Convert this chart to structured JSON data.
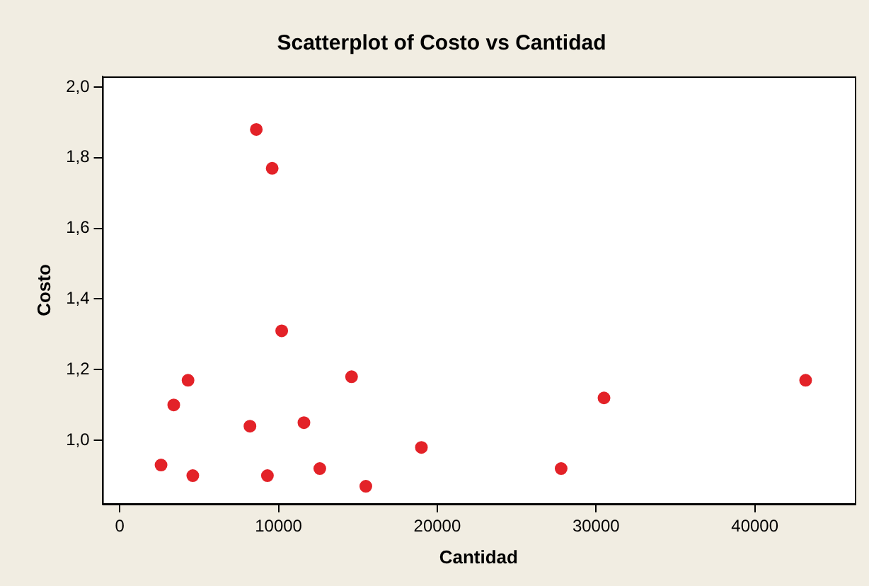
{
  "chart_data": {
    "type": "scatter",
    "title": "Scatterplot of Costo vs Cantidad",
    "xlabel": "Cantidad",
    "ylabel": "Costo",
    "x": [
      2600,
      3400,
      4300,
      4600,
      8200,
      8600,
      9600,
      9300,
      10200,
      11600,
      12600,
      14600,
      15500,
      19000,
      27800,
      30500,
      43200
    ],
    "series": [
      {
        "color": "#e32228",
        "values": [
          0.93,
          1.1,
          1.17,
          0.9,
          1.04,
          1.88,
          1.77,
          0.9,
          1.31,
          1.05,
          0.92,
          1.18,
          0.87,
          0.98,
          0.92,
          1.12,
          1.17
        ]
      }
    ],
    "xlim": [
      -1100,
      46300
    ],
    "xticks": [
      0,
      10000,
      20000,
      30000,
      40000
    ],
    "ylim": [
      0.82,
      2.03
    ],
    "yticks": [
      {
        "value": 1.0,
        "label": "1,0"
      },
      {
        "value": 1.2,
        "label": "1,2"
      },
      {
        "value": 1.4,
        "label": "1,4"
      },
      {
        "value": 1.6,
        "label": "1,6"
      },
      {
        "value": 1.8,
        "label": "1,8"
      },
      {
        "value": 2.0,
        "label": "2,0"
      }
    ],
    "grid": false,
    "legend": false,
    "marker": "circle"
  }
}
